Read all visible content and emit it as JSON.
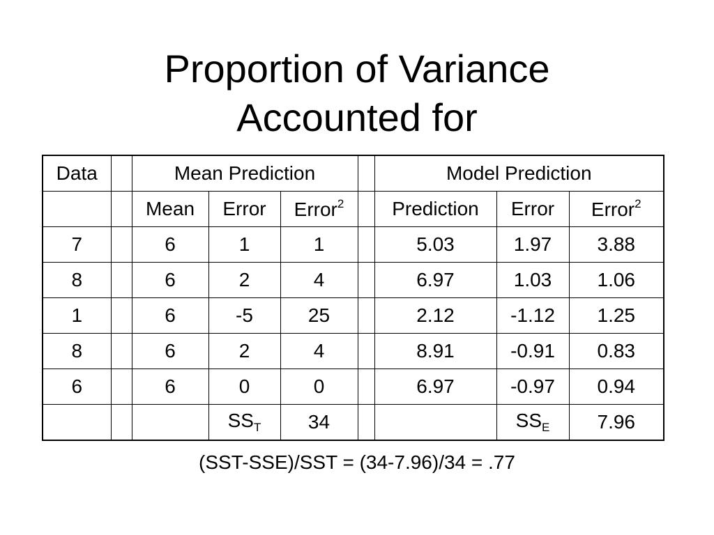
{
  "title": {
    "lines": [
      "Proportion of Variance",
      "Accounted for"
    ]
  },
  "table": {
    "header": {
      "data": "Data",
      "mean_group": "Mean Prediction",
      "model_group": "Model Prediction"
    },
    "subheader": {
      "mean": "Mean",
      "mean_error": "Error",
      "mean_error_sq": {
        "text": "Error",
        "sup": "2"
      },
      "prediction": "Prediction",
      "model_error": "Error",
      "model_error_sq": {
        "text": "Error",
        "sup": "2"
      }
    },
    "rows": [
      {
        "data": "7",
        "mean": "6",
        "mean_error": "1",
        "mean_error_sq": "1",
        "prediction": "5.03",
        "model_error": "1.97",
        "model_error_sq": "3.88"
      },
      {
        "data": "8",
        "mean": "6",
        "mean_error": "2",
        "mean_error_sq": "4",
        "prediction": "6.97",
        "model_error": "1.03",
        "model_error_sq": "1.06"
      },
      {
        "data": "1",
        "mean": "6",
        "mean_error": "-5",
        "mean_error_sq": "25",
        "prediction": "2.12",
        "model_error": "-1.12",
        "model_error_sq": "1.25"
      },
      {
        "data": "8",
        "mean": "6",
        "mean_error": "2",
        "mean_error_sq": "4",
        "prediction": "8.91",
        "model_error": "-0.91",
        "model_error_sq": "0.83"
      },
      {
        "data": "6",
        "mean": "6",
        "mean_error": "0",
        "mean_error_sq": "0",
        "prediction": "6.97",
        "model_error": "-0.97",
        "model_error_sq": "0.94"
      }
    ],
    "totals": {
      "sst": {
        "text": "SS",
        "sub": "T"
      },
      "sst_value": "34",
      "sse": {
        "text": "SS",
        "sub": "E"
      },
      "sse_value": "7.96"
    }
  },
  "formula": "(SST-SSE)/SST = (34-7.96)/34 = .77"
}
